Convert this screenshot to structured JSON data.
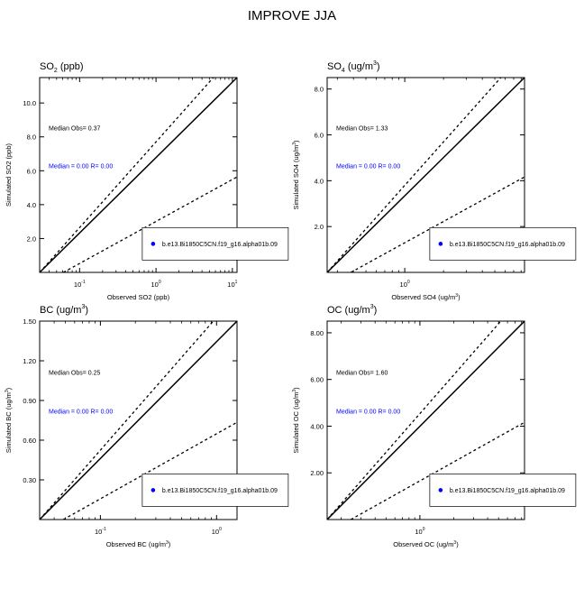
{
  "figure": {
    "title": "IMPROVE JJA"
  },
  "chart_data": [
    {
      "type": "scatter",
      "title_main": "SO",
      "title_sub": "2",
      "title_rest": " (ppb)",
      "xlabel": "Observed SO2 (ppb)",
      "ylabel": "Simulated SO2 (ppb)",
      "x_scale": "log",
      "xlim": [
        0.03,
        11.5
      ],
      "ylim": [
        0,
        11.5
      ],
      "x_ticks": [
        {
          "v": 0.1,
          "base": "10",
          "exp": "-1"
        },
        {
          "v": 1,
          "base": "10",
          "exp": "0"
        },
        {
          "v": 10,
          "base": "10",
          "exp": "1"
        }
      ],
      "y_ticks": [
        {
          "v": 2,
          "label": "2.0"
        },
        {
          "v": 4,
          "label": "4.0"
        },
        {
          "v": 6,
          "label": "6.0"
        },
        {
          "v": 8,
          "label": "8.0"
        },
        {
          "v": 10,
          "label": "10.0"
        }
      ],
      "median_obs_text": "Median Obs= 0.37",
      "median_model_text": "Median = 0.00 R= 0.00",
      "legend_label": "b.e13.Bi1850C5CN.f19_g16.alpha01b.09",
      "lines": [
        "1:1",
        "2:1",
        "1:2"
      ],
      "grid": false
    },
    {
      "type": "scatter",
      "title_main": "SO",
      "title_sub": "4",
      "title_rest": " (ug/m",
      "title_sup": "3",
      "title_end": ")",
      "xlabel": "Observed SO4 (ug/m",
      "xlabel_sup": "3",
      "xlabel_end": ")",
      "ylabel": "Simulated SO4 (ug/m",
      "ylabel_sup": "3",
      "ylabel_end": ")",
      "x_scale": "log",
      "xlim": [
        0.25,
        8.5
      ],
      "ylim": [
        0,
        8.5
      ],
      "x_ticks": [
        {
          "v": 1,
          "base": "10",
          "exp": "0"
        }
      ],
      "y_ticks": [
        {
          "v": 2,
          "label": "2.0"
        },
        {
          "v": 4,
          "label": "4.0"
        },
        {
          "v": 6,
          "label": "6.0"
        },
        {
          "v": 8,
          "label": "8.0"
        }
      ],
      "median_obs_text": "Median Obs= 1.33",
      "median_model_text": "Median = 0.00 R= 0.00",
      "legend_label": "b.e13.Bi1850C5CN.f19_g16.alpha01b.09",
      "lines": [
        "1:1",
        "2:1",
        "1:2"
      ],
      "grid": false
    },
    {
      "type": "scatter",
      "title_main": "BC (ug/m",
      "title_sup": "3",
      "title_end": ")",
      "xlabel": "Observed BC (ug/m",
      "xlabel_sup": "3",
      "xlabel_end": ")",
      "ylabel": "Simulated BC (ug/m",
      "ylabel_sup": "3",
      "ylabel_end": ")",
      "x_scale": "log",
      "xlim": [
        0.03,
        1.5
      ],
      "ylim": [
        0,
        1.5
      ],
      "x_ticks": [
        {
          "v": 0.1,
          "base": "10",
          "exp": "-1"
        },
        {
          "v": 1,
          "base": "10",
          "exp": "0"
        }
      ],
      "y_ticks": [
        {
          "v": 0.3,
          "label": "0.30"
        },
        {
          "v": 0.6,
          "label": "0.60"
        },
        {
          "v": 0.9,
          "label": "0.90"
        },
        {
          "v": 1.2,
          "label": "1.20"
        },
        {
          "v": 1.5,
          "label": "1.50"
        }
      ],
      "median_obs_text": "Median Obs= 0.25",
      "median_model_text": "Median = 0.00 R= 0.00",
      "legend_label": "b.e13.Bi1850C5CN.f19_g16.alpha01b.09",
      "lines": [
        "1:1",
        "2:1",
        "1:2"
      ],
      "grid": false
    },
    {
      "type": "scatter",
      "title_main": "OC (ug/m",
      "title_sup": "3",
      "title_end": ")",
      "xlabel": "Observed OC (ug/m",
      "xlabel_sup": "3",
      "xlabel_end": ")",
      "ylabel": "Simulated OC (ug/m",
      "ylabel_sup": "3",
      "ylabel_end": ")",
      "x_scale": "log",
      "xlim": [
        0.15,
        8.5
      ],
      "ylim": [
        0,
        8.5
      ],
      "x_ticks": [
        {
          "v": 1,
          "base": "10",
          "exp": "0"
        }
      ],
      "y_ticks": [
        {
          "v": 2,
          "label": "2.00"
        },
        {
          "v": 4,
          "label": "4.00"
        },
        {
          "v": 6,
          "label": "6.00"
        },
        {
          "v": 8,
          "label": "8.00"
        }
      ],
      "median_obs_text": "Median Obs= 1.60",
      "median_model_text": "Median = 0.00 R= 0.00",
      "legend_label": "b.e13.Bi1850C5CN.f19_g16.alpha01b.09",
      "lines": [
        "1:1",
        "2:1",
        "1:2"
      ],
      "grid": false
    }
  ],
  "colors": {
    "axis": "#000000",
    "model": "#0000ff",
    "marker": "#0000ff"
  }
}
